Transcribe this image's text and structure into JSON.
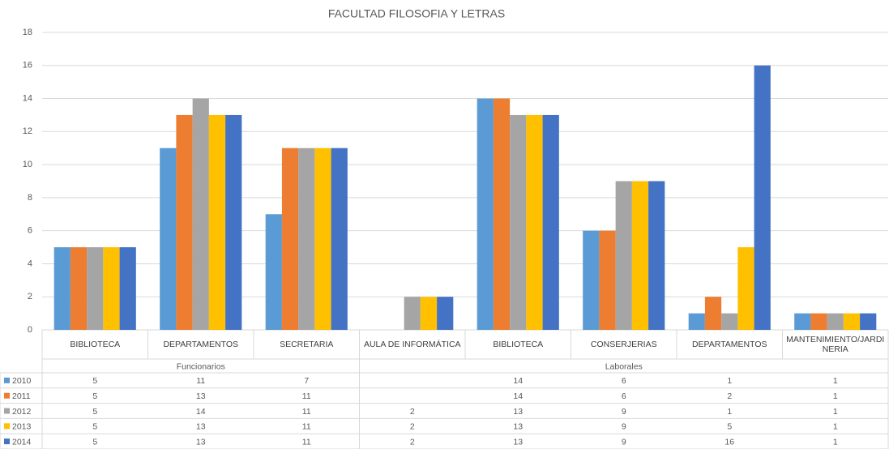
{
  "chart_data": {
    "type": "bar",
    "title": "FACULTAD FILOSOFIA Y LETRAS",
    "categories": [
      "BIBLIOTECA",
      "DEPARTAMENTOS",
      "SECRETARIA",
      "AULA DE INFORMÁTICA",
      "BIBLIOTECA",
      "CONSERJERIAS",
      "DEPARTAMENTOS",
      "MANTENIMIENTO/JARDINERIA"
    ],
    "groups": [
      "Funcionarios",
      "Funcionarios",
      "Funcionarios",
      "Laborales",
      "Laborales",
      "Laborales",
      "Laborales",
      "Laborales"
    ],
    "series": [
      {
        "name": "2010",
        "color": "#5b9bd5",
        "values": [
          5,
          11,
          7,
          null,
          14,
          6,
          1,
          1
        ]
      },
      {
        "name": "2011",
        "color": "#ed7d31",
        "values": [
          5,
          13,
          11,
          null,
          14,
          6,
          2,
          1
        ]
      },
      {
        "name": "2012",
        "color": "#a5a5a5",
        "values": [
          5,
          14,
          11,
          2,
          13,
          9,
          1,
          1
        ]
      },
      {
        "name": "2013",
        "color": "#ffc000",
        "values": [
          5,
          13,
          11,
          2,
          13,
          9,
          5,
          1
        ]
      },
      {
        "name": "2014",
        "color": "#4472c4",
        "values": [
          5,
          13,
          11,
          2,
          13,
          9,
          16,
          1
        ]
      }
    ],
    "ylim": [
      0,
      18
    ],
    "yticks": [
      0,
      2,
      4,
      6,
      8,
      10,
      12,
      14,
      16,
      18
    ],
    "grid": true
  }
}
